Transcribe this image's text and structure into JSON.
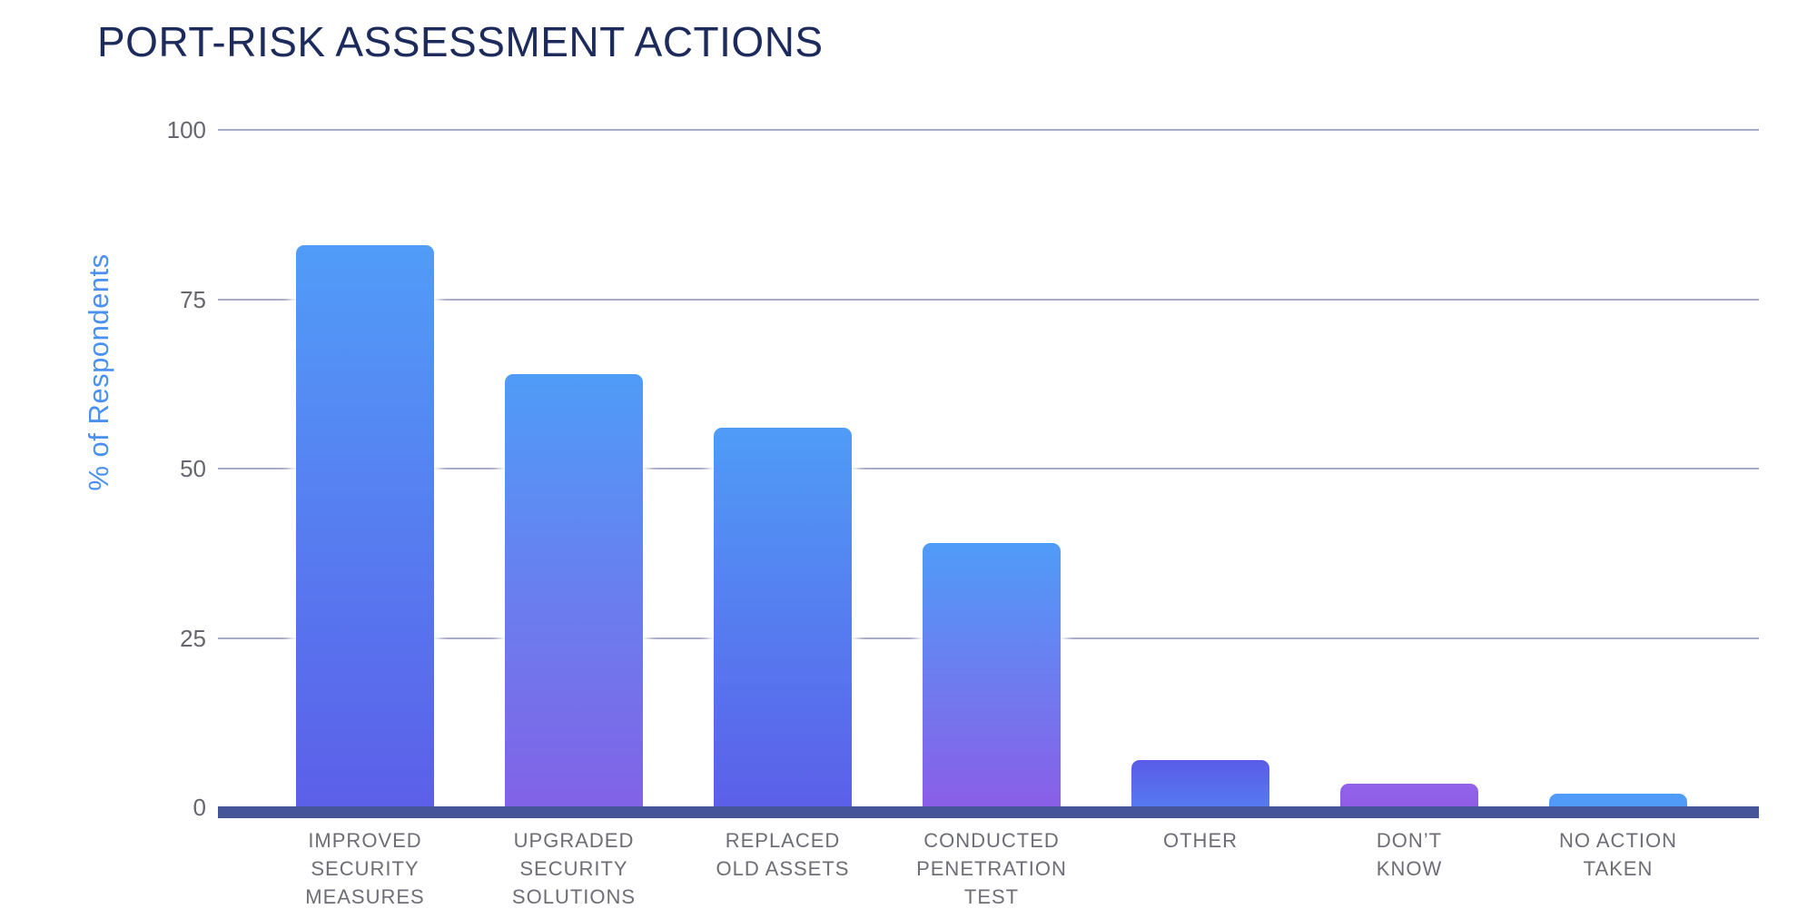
{
  "chart_data": {
    "type": "bar",
    "title": "PORT-RISK ASSESSMENT ACTIONS",
    "xlabel": "",
    "ylabel": "% of Respondents",
    "ylim": [
      0,
      100
    ],
    "y_ticks": [
      100,
      75,
      50,
      25,
      0
    ],
    "grid": "horizontal",
    "legend": "none",
    "categories": [
      "IMPROVED SECURITY MEASURES",
      "UPGRADED SECURITY SOLUTIONS",
      "REPLACED OLD ASSETS",
      "CONDUCTED PENETRATION TEST",
      "OTHER",
      "DON’T KNOW",
      "NO ACTION TAKEN"
    ],
    "category_lines": [
      [
        "IMPROVED",
        "SECURITY",
        "MEASURES"
      ],
      [
        "UPGRADED",
        "SECURITY",
        "SOLUTIONS"
      ],
      [
        "REPLACED",
        "OLD ASSETS"
      ],
      [
        "CONDUCTED",
        "PENETRATION",
        "TEST"
      ],
      [
        "OTHER"
      ],
      [
        "DON’T",
        "KNOW"
      ],
      [
        "NO ACTION",
        "TAKEN"
      ]
    ],
    "values": [
      83,
      64,
      56,
      39,
      7,
      3.5,
      2
    ],
    "bar_gradients": [
      [
        "#519cf8",
        "#5c5fe9"
      ],
      [
        "#4f9cf7",
        "#8262e7"
      ],
      [
        "#4f9cf7",
        "#5c5fe9"
      ],
      [
        "#4f9cf7",
        "#8a5ee8"
      ],
      [
        "#5a5ce8",
        "#567af0"
      ],
      [
        "#9263ea",
        "#8f5ce6"
      ],
      [
        "#4f9bf7",
        "#4f9bf7"
      ]
    ]
  },
  "colors": {
    "background": "#ffffff",
    "title": "#1c2a5c",
    "y_axis_label": "#4a90f2",
    "tick_text": "#66666e",
    "category_text": "#6d6d76",
    "gridline": "#a9aac6",
    "baseline": "#46559a"
  }
}
